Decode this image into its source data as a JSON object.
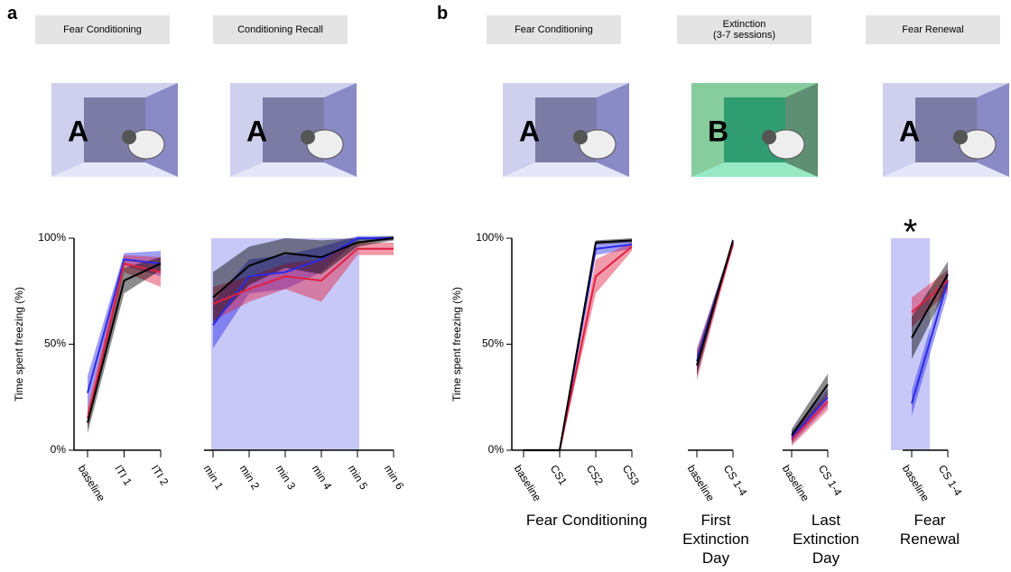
{
  "panels": [
    {
      "label": "a",
      "headers": [
        "Fear Conditioning",
        "Conditioning Recall"
      ]
    },
    {
      "label": "b",
      "headers": [
        "Fear Conditioning",
        "Extinction\n(3-7 sessions)",
        "Fear Renewal"
      ]
    }
  ],
  "contexts": [
    "A",
    "A",
    "A",
    "B",
    "A"
  ],
  "chart_data": [
    {
      "type": "line",
      "ylabel": "Time spent freezing (%)",
      "categories": [
        "baseline",
        "ITI 1",
        "ITI 2"
      ],
      "ylim": [
        0,
        100
      ],
      "yticks": [
        {
          "value": 0,
          "label": "0%"
        },
        {
          "value": 50,
          "label": "50%"
        },
        {
          "value": 100,
          "label": "100%"
        }
      ],
      "series": [
        {
          "color": "#2a2ae6",
          "values": [
            27,
            90,
            88
          ],
          "errors": [
            8,
            3,
            6
          ]
        },
        {
          "color": "#e02040",
          "values": [
            15,
            88,
            84
          ],
          "errors": [
            5,
            4,
            7
          ]
        },
        {
          "color": "#000000",
          "values": [
            13,
            80,
            88
          ],
          "errors": [
            5,
            6,
            3
          ]
        }
      ]
    },
    {
      "type": "line",
      "categories": [
        "min 1",
        "min 2",
        "min 3",
        "min 4",
        "min 5",
        "min 6"
      ],
      "ylim": [
        0,
        100
      ],
      "series": [
        {
          "color": "#2a2ae6",
          "values": [
            59,
            82,
            84,
            90,
            100,
            100
          ],
          "errors": [
            11,
            8,
            8,
            6,
            1,
            1
          ]
        },
        {
          "color": "#e02040",
          "values": [
            69,
            76,
            82,
            80,
            95,
            95
          ],
          "errors": [
            8,
            6,
            6,
            10,
            3,
            3
          ]
        },
        {
          "color": "#000000",
          "values": [
            72,
            87,
            93,
            91,
            98,
            100
          ],
          "errors": [
            12,
            9,
            7,
            8,
            2,
            1
          ]
        }
      ]
    },
    {
      "type": "line",
      "ylabel": "Time spent freezing (%)",
      "xlabel": "Fear Conditioning",
      "categories": [
        "baseline",
        "CS1",
        "CS2",
        "CS3"
      ],
      "ylim": [
        0,
        100
      ],
      "yticks": [
        {
          "value": 0,
          "label": "0%"
        },
        {
          "value": 50,
          "label": "50%"
        },
        {
          "value": 100,
          "label": "100%"
        }
      ],
      "series": [
        {
          "color": "#2a2ae6",
          "values": [
            0,
            0,
            95,
            97
          ],
          "errors": [
            0.5,
            0.5,
            3,
            2
          ]
        },
        {
          "color": "#e02040",
          "values": [
            0,
            0,
            82,
            96
          ],
          "errors": [
            0.5,
            0.5,
            8,
            2
          ]
        },
        {
          "color": "#000000",
          "values": [
            0,
            0,
            98,
            99
          ],
          "errors": [
            0.5,
            0.5,
            1,
            1
          ]
        }
      ]
    },
    {
      "type": "line",
      "xlabel": "First\nExtinction\nDay",
      "categories": [
        "baseline",
        "CS 1-4"
      ],
      "ylim": [
        0,
        100
      ],
      "series": [
        {
          "color": "#2a2ae6",
          "values": [
            42,
            98
          ],
          "errors": [
            6,
            1
          ]
        },
        {
          "color": "#e02040",
          "values": [
            40,
            97
          ],
          "errors": [
            7,
            1
          ]
        },
        {
          "color": "#000000",
          "values": [
            40,
            99
          ],
          "errors": [
            5,
            1
          ]
        }
      ]
    },
    {
      "type": "line",
      "xlabel": "Last\nExtinction\nDay",
      "categories": [
        "baseline",
        "CS 1-4"
      ],
      "ylim": [
        0,
        100
      ],
      "series": [
        {
          "color": "#2a2ae6",
          "values": [
            6,
            25
          ],
          "errors": [
            3,
            4
          ]
        },
        {
          "color": "#e02040",
          "values": [
            5,
            23
          ],
          "errors": [
            3,
            4
          ]
        },
        {
          "color": "#000000",
          "values": [
            7,
            31
          ],
          "errors": [
            3,
            5
          ]
        }
      ]
    },
    {
      "type": "line",
      "xlabel": "Fear\nRenewal",
      "categories": [
        "baseline",
        "CS 1-4"
      ],
      "annotation": "*",
      "ylim": [
        0,
        100
      ],
      "series": [
        {
          "color": "#2a2ae6",
          "values": [
            22,
            80
          ],
          "errors": [
            6,
            6
          ]
        },
        {
          "color": "#e02040",
          "values": [
            65,
            80
          ],
          "errors": [
            7,
            5
          ]
        },
        {
          "color": "#000000",
          "values": [
            53,
            83
          ],
          "errors": [
            10,
            6
          ]
        }
      ]
    }
  ]
}
